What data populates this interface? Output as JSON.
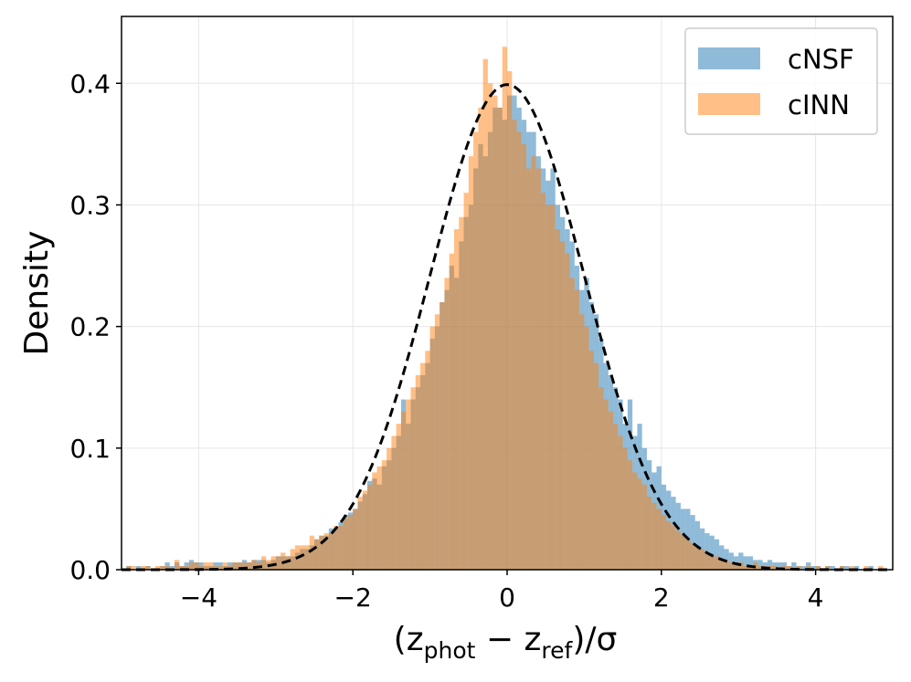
{
  "chart_data": {
    "type": "bar",
    "subtype": "overlaid-histogram-with-gaussian",
    "xlabel": "(z_phot − z_ref)/σ",
    "xlabel_parts": {
      "open": "(z",
      "sub1": "phot",
      "minus": " − z",
      "sub2": "ref",
      "close": ")/σ"
    },
    "ylabel": "Density",
    "xlim": [
      -5,
      5
    ],
    "ylim": [
      0,
      0.455
    ],
    "xticks": [
      -4,
      -2,
      0,
      2,
      4
    ],
    "xtick_labels": [
      "−4",
      "−2",
      "0",
      "2",
      "4"
    ],
    "yticks": [
      0.0,
      0.1,
      0.2,
      0.3,
      0.4
    ],
    "ytick_labels": [
      "0.0",
      "0.1",
      "0.2",
      "0.3",
      "0.4"
    ],
    "grid": true,
    "legend_position": "top-right",
    "bin_range": [
      -5,
      5
    ],
    "series": [
      {
        "name": "cNSF",
        "color": "#1f77b4",
        "opacity": 0.5,
        "values": [
          0.0,
          0.003,
          0.0,
          0.003,
          0.0,
          0.003,
          0.0,
          0.0,
          0.003,
          0.006,
          0.003,
          0.006,
          0.003,
          0.006,
          0.008,
          0.006,
          0.006,
          0.003,
          0.003,
          0.006,
          0.006,
          0.003,
          0.006,
          0.006,
          0.006,
          0.008,
          0.006,
          0.008,
          0.008,
          0.008,
          0.006,
          0.008,
          0.011,
          0.011,
          0.011,
          0.011,
          0.014,
          0.017,
          0.017,
          0.02,
          0.025,
          0.028,
          0.028,
          0.034,
          0.034,
          0.039,
          0.045,
          0.047,
          0.05,
          0.056,
          0.062,
          0.073,
          0.075,
          0.07,
          0.085,
          0.09,
          0.1,
          0.11,
          0.14,
          0.12,
          0.14,
          0.15,
          0.16,
          0.17,
          0.19,
          0.2,
          0.22,
          0.23,
          0.25,
          0.24,
          0.27,
          0.29,
          0.3,
          0.33,
          0.35,
          0.34,
          0.36,
          0.38,
          0.38,
          0.37,
          0.39,
          0.39,
          0.38,
          0.37,
          0.36,
          0.36,
          0.34,
          0.33,
          0.32,
          0.33,
          0.3,
          0.29,
          0.28,
          0.27,
          0.25,
          0.23,
          0.24,
          0.22,
          0.21,
          0.19,
          0.17,
          0.16,
          0.15,
          0.14,
          0.12,
          0.14,
          0.11,
          0.12,
          0.1,
          0.09,
          0.08,
          0.085,
          0.07,
          0.065,
          0.06,
          0.055,
          0.05,
          0.05,
          0.045,
          0.04,
          0.034,
          0.03,
          0.028,
          0.025,
          0.02,
          0.017,
          0.014,
          0.011,
          0.014,
          0.011,
          0.011,
          0.008,
          0.008,
          0.006,
          0.008,
          0.006,
          0.006,
          0.006,
          0.003,
          0.006,
          0.003,
          0.003,
          0.006,
          0.003,
          0.003,
          0.0,
          0.003,
          0.003,
          0.0,
          0.003,
          0.003,
          0.0,
          0.003,
          0.0,
          0.0,
          0.003,
          0.0,
          0.0,
          0.0,
          0.0
        ]
      },
      {
        "name": "cINN",
        "color": "#ff7f0e",
        "opacity": 0.5,
        "values": [
          0.0,
          0.003,
          0.003,
          0.0,
          0.003,
          0.003,
          0.0,
          0.003,
          0.003,
          0.003,
          0.0,
          0.008,
          0.003,
          0.003,
          0.006,
          0.006,
          0.003,
          0.006,
          0.006,
          0.003,
          0.003,
          0.006,
          0.003,
          0.006,
          0.006,
          0.006,
          0.006,
          0.008,
          0.006,
          0.011,
          0.008,
          0.011,
          0.011,
          0.014,
          0.011,
          0.017,
          0.02,
          0.02,
          0.02,
          0.028,
          0.025,
          0.028,
          0.03,
          0.03,
          0.036,
          0.036,
          0.042,
          0.045,
          0.05,
          0.06,
          0.065,
          0.07,
          0.08,
          0.085,
          0.09,
          0.1,
          0.11,
          0.12,
          0.13,
          0.14,
          0.15,
          0.16,
          0.17,
          0.18,
          0.2,
          0.21,
          0.22,
          0.24,
          0.26,
          0.28,
          0.29,
          0.31,
          0.34,
          0.36,
          0.38,
          0.42,
          0.4,
          0.39,
          0.38,
          0.43,
          0.41,
          0.37,
          0.36,
          0.35,
          0.33,
          0.34,
          0.33,
          0.31,
          0.3,
          0.3,
          0.28,
          0.27,
          0.26,
          0.24,
          0.23,
          0.21,
          0.2,
          0.18,
          0.17,
          0.15,
          0.14,
          0.13,
          0.12,
          0.11,
          0.1,
          0.09,
          0.08,
          0.075,
          0.07,
          0.06,
          0.055,
          0.05,
          0.045,
          0.04,
          0.036,
          0.032,
          0.028,
          0.025,
          0.022,
          0.02,
          0.017,
          0.014,
          0.011,
          0.011,
          0.008,
          0.008,
          0.006,
          0.006,
          0.006,
          0.003,
          0.003,
          0.006,
          0.003,
          0.003,
          0.003,
          0.003,
          0.0,
          0.003,
          0.003,
          0.0,
          0.003,
          0.0,
          0.003,
          0.0,
          0.003,
          0.0,
          0.003,
          0.0,
          0.0,
          0.003,
          0.0,
          0.003,
          0.0,
          0.0,
          0.003,
          0.0,
          0.0,
          0.003,
          0.0,
          0.0
        ]
      }
    ],
    "reference_curve": {
      "type": "gaussian",
      "mean": 0,
      "std": 1,
      "style": "dashed",
      "color": "#000000"
    }
  }
}
